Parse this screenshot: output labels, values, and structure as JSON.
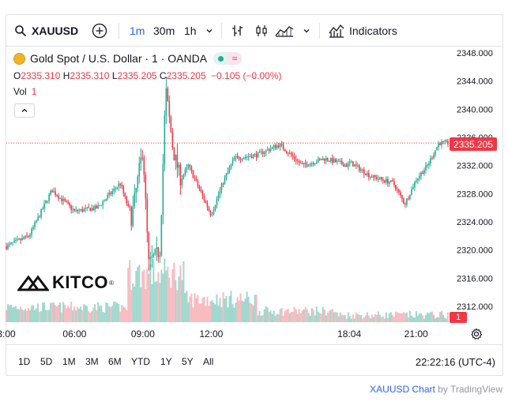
{
  "toolbar": {
    "symbol": "XAUUSD",
    "timeframes": [
      "1m",
      "30m",
      "1h"
    ],
    "active_timeframe": "1m",
    "indicators_label": "Indicators"
  },
  "legend": {
    "title": "Gold Spot / U.S. Dollar · 1 · OANDA",
    "open_label": "O",
    "open": "2335.310",
    "high_label": "H",
    "high": "2335.310",
    "low_label": "L",
    "low": "2335.205",
    "close_label": "C",
    "close": "2335.205",
    "change": "−0.105 (−0.00%)",
    "vol_label": "Vol",
    "vol_value": "1"
  },
  "price_axis": {
    "ticks": [
      "2348.000",
      "2344.000",
      "2340.000",
      "2336.000",
      "2332.000",
      "2328.000",
      "2324.000",
      "2320.000",
      "2316.000",
      "2312.000"
    ],
    "last_price_tag": "2335.205",
    "volume_tag": "1"
  },
  "time_axis": {
    "ticks": [
      "3:00",
      "06:00",
      "09:00",
      "12:00",
      "18:04",
      "21:00"
    ]
  },
  "ranges": [
    "1D",
    "5D",
    "1M",
    "3M",
    "6M",
    "YTD",
    "1Y",
    "5Y",
    "All"
  ],
  "clock": "22:22:16 (UTC-4)",
  "attribution": {
    "symbol_chart": "XAUUSD Chart",
    "by": "by TradingView"
  },
  "logo": {
    "text": "KITCO"
  },
  "colors": {
    "up": "#22ab94",
    "down": "#f23645",
    "accent": "#2962ff"
  },
  "chart_data": {
    "type": "candlestick",
    "symbol": "XAUUSD",
    "interval": "1m",
    "ylim": [
      2310,
      2349
    ],
    "x": [
      "03:00",
      "04:00",
      "05:00",
      "06:00",
      "07:00",
      "08:00",
      "08:30",
      "09:00",
      "09:15",
      "09:30",
      "09:45",
      "10:00",
      "10:20",
      "10:40",
      "11:00",
      "12:00",
      "12:30",
      "13:00",
      "14:00",
      "15:00",
      "16:00",
      "17:00",
      "18:00",
      "18:04",
      "19:00",
      "20:00",
      "20:30",
      "21:00",
      "21:30",
      "22:00",
      "22:20"
    ],
    "close": [
      2320.5,
      2322.0,
      2328.5,
      2325.5,
      2326.0,
      2329.5,
      2324.5,
      2334.5,
      2318.0,
      2319.0,
      2320.0,
      2343.0,
      2334.0,
      2330.0,
      2332.0,
      2325.0,
      2329.5,
      2333.0,
      2333.5,
      2335.0,
      2332.0,
      2333.0,
      2332.0,
      2332.5,
      2330.5,
      2329.5,
      2326.5,
      2330.0,
      2332.0,
      2335.2,
      2335.205
    ],
    "volume_profile": "elevated 08:30–10:30, declining into the afternoon"
  }
}
